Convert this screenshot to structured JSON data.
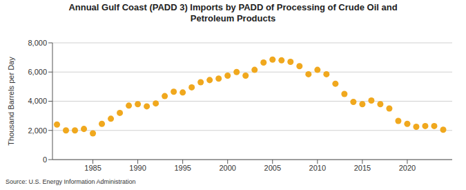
{
  "chart_data": {
    "type": "scatter",
    "title": "Annual Gulf Coast (PADD 3) Imports by PADD of Processing of Crude Oil and Petroleum Products",
    "y_label": "Thousand Barrels per Day",
    "source": "Source: U.S. Energy Information Administration",
    "x": [
      1981,
      1982,
      1983,
      1984,
      1985,
      1986,
      1987,
      1988,
      1989,
      1990,
      1991,
      1992,
      1993,
      1994,
      1995,
      1996,
      1997,
      1998,
      1999,
      2000,
      2001,
      2002,
      2003,
      2004,
      2005,
      2006,
      2007,
      2008,
      2009,
      2010,
      2011,
      2012,
      2013,
      2014,
      2015,
      2016,
      2017,
      2018,
      2019,
      2020,
      2021,
      2022,
      2023,
      2024
    ],
    "values": [
      2400,
      2000,
      2000,
      2100,
      1800,
      2450,
      2800,
      3200,
      3700,
      3800,
      3650,
      3850,
      4350,
      4650,
      4600,
      4950,
      5300,
      5450,
      5550,
      5750,
      6000,
      5750,
      6150,
      6650,
      6850,
      6800,
      6700,
      6400,
      5850,
      6150,
      5850,
      5200,
      4500,
      3950,
      3800,
      4050,
      3800,
      3500,
      2650,
      2450,
      2250,
      2300,
      2300,
      2050
    ],
    "color": "#f0a81e",
    "marker": "circle",
    "xlim": [
      1980.5,
      2025
    ],
    "xticks": [
      1985,
      1990,
      1995,
      2000,
      2005,
      2010,
      2015,
      2020
    ],
    "ylim": [
      0,
      8000
    ],
    "yticks": [
      0,
      {
        "value": 2000,
        "label": "2,000"
      },
      {
        "value": 4000,
        "label": "4,000"
      },
      {
        "value": 6000,
        "label": "6,000"
      },
      {
        "value": 8000,
        "label": "8,000"
      }
    ],
    "grid": true
  }
}
